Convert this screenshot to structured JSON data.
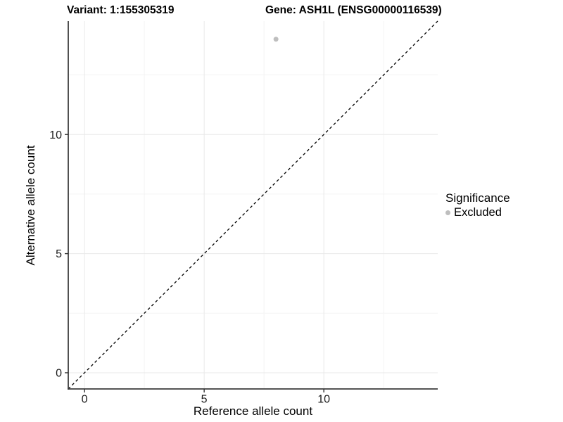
{
  "titles": {
    "variant": "Variant: 1:155305319",
    "gene": "Gene: ASH1L (ENSG00000116539)"
  },
  "legend": {
    "title": "Significance",
    "items": [
      {
        "label": "Excluded",
        "color": "#bebebe"
      }
    ]
  },
  "colors": {
    "background": "#ffffff",
    "axis_line": "#3c3c3c",
    "tick_mark": "#333333",
    "tick_label": "#1a1a1a",
    "grid_major": "#e9e9e9",
    "grid_minor": "#f4f4f4",
    "identity_line": "#000000",
    "point": "#bebebe"
  },
  "chart_data": {
    "type": "scatter",
    "title": "Variant: 1:155305319 | Gene: ASH1L (ENSG00000116539)",
    "xlabel": "Reference allele count",
    "ylabel": "Alternative allele count",
    "xlim": [
      -0.68,
      14.76
    ],
    "ylim": [
      -0.68,
      14.76
    ],
    "x_ticks": [
      0,
      5,
      10
    ],
    "y_ticks": [
      0,
      5,
      10
    ],
    "x_minor_ticks": [
      2.5,
      7.5,
      12.5
    ],
    "y_minor_ticks": [
      2.5,
      7.5,
      12.5
    ],
    "grid": "major-and-minor",
    "legend_position": "right",
    "series": [
      {
        "name": "Excluded",
        "color": "#bebebe",
        "points": [
          {
            "x": 8,
            "y": 14
          }
        ]
      }
    ],
    "reference_line": {
      "type": "identity",
      "equation": "y = x",
      "style": "dashed",
      "color": "#000000"
    }
  }
}
